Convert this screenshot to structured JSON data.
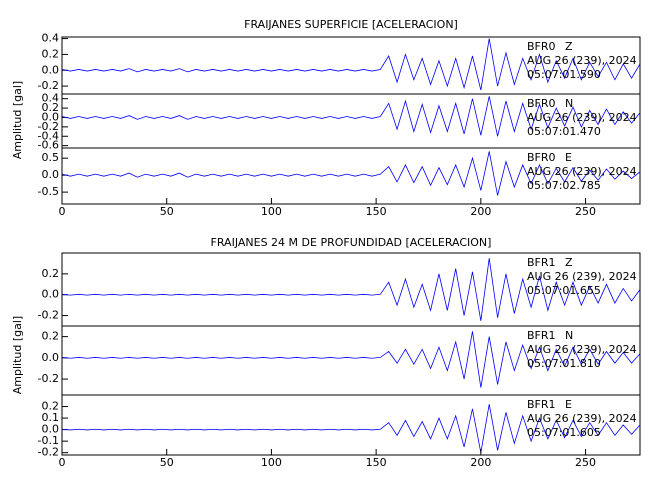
{
  "chart_data": [
    {
      "type": "line",
      "title": "FRAIJANES SUPERFICIE [ACELERACION]",
      "y_label": "Amplitud [gal]",
      "color": "#0000ff",
      "xlim": [
        0,
        276
      ],
      "xticks": [
        0,
        50,
        100,
        150,
        200,
        250
      ],
      "x": [
        0,
        4,
        8,
        12,
        16,
        20,
        24,
        28,
        32,
        36,
        40,
        44,
        48,
        52,
        56,
        60,
        64,
        68,
        72,
        76,
        80,
        84,
        88,
        92,
        96,
        100,
        104,
        108,
        112,
        116,
        120,
        124,
        128,
        132,
        136,
        140,
        144,
        148,
        152,
        156,
        160,
        164,
        168,
        172,
        176,
        180,
        184,
        188,
        192,
        196,
        200,
        204,
        208,
        212,
        216,
        220,
        224,
        228,
        232,
        236,
        240,
        244,
        248,
        252,
        256,
        260,
        264,
        268,
        272,
        276
      ],
      "panels": [
        {
          "station": "BFR0",
          "component": "Z",
          "date": "AUG 26 (239), 2024",
          "time": "05:07:01.590",
          "ylim": [
            -0.3,
            0.42
          ],
          "yticks": [
            0.4,
            0.2,
            {
              "value": 0,
              "label": "0.0"
            },
            -0.2
          ],
          "values": [
            0.01,
            -0.01,
            0.01,
            -0.01,
            0.01,
            -0.01,
            0.01,
            -0.01,
            0.02,
            -0.02,
            0.01,
            -0.01,
            0.01,
            -0.01,
            0.02,
            -0.02,
            0.01,
            -0.01,
            0.01,
            -0.01,
            0.01,
            -0.01,
            0.01,
            -0.01,
            0.01,
            -0.01,
            0.01,
            -0.01,
            0.01,
            -0.01,
            0.01,
            -0.01,
            0.01,
            -0.01,
            0.01,
            -0.01,
            0.01,
            -0.01,
            0.01,
            0.18,
            -0.15,
            0.2,
            -0.12,
            0.15,
            -0.18,
            0.12,
            -0.2,
            0.15,
            -0.22,
            0.18,
            -0.25,
            0.4,
            -0.2,
            0.22,
            -0.18,
            0.15,
            -0.12,
            0.2,
            -0.15,
            0.12,
            -0.1,
            0.15,
            -0.12,
            0.1,
            -0.08,
            0.1,
            -0.12,
            0.08,
            -0.1,
            0.08
          ]
        },
        {
          "station": "BFR0",
          "component": "N",
          "date": "AUG 26 (239), 2024",
          "time": "05:07:01.470",
          "ylim": [
            -0.65,
            0.5
          ],
          "yticks": [
            0.4,
            0.2,
            {
              "value": 0,
              "label": "0.0"
            },
            -0.2,
            -0.4,
            -0.6
          ],
          "values": [
            0.02,
            -0.02,
            0.02,
            -0.02,
            0.02,
            -0.02,
            0.02,
            -0.02,
            0.04,
            -0.04,
            0.02,
            -0.02,
            0.02,
            -0.02,
            0.04,
            -0.04,
            0.02,
            -0.02,
            0.02,
            -0.02,
            0.02,
            -0.02,
            0.02,
            -0.02,
            0.02,
            -0.02,
            0.02,
            -0.02,
            0.02,
            -0.02,
            0.02,
            -0.02,
            0.02,
            -0.02,
            0.02,
            -0.02,
            0.02,
            -0.02,
            0.02,
            0.3,
            -0.25,
            0.35,
            -0.3,
            0.28,
            -0.32,
            0.25,
            -0.3,
            0.3,
            -0.35,
            0.4,
            -0.38,
            0.45,
            -0.4,
            0.35,
            -0.3,
            0.3,
            -0.25,
            0.28,
            -0.22,
            0.2,
            -0.18,
            0.22,
            -0.2,
            0.15,
            -0.15,
            0.18,
            -0.15,
            0.12,
            -0.12,
            0.1
          ]
        },
        {
          "station": "BFR0",
          "component": "E",
          "date": "AUG 26 (239), 2024",
          "time": "05:07:02.785",
          "ylim": [
            -0.85,
            0.8
          ],
          "yticks": [
            0.5,
            {
              "value": 0,
              "label": "0.0"
            },
            -0.5
          ],
          "values": [
            0.03,
            -0.03,
            0.03,
            -0.03,
            0.03,
            -0.03,
            0.03,
            -0.03,
            0.06,
            -0.06,
            0.03,
            -0.03,
            0.03,
            -0.03,
            0.06,
            -0.06,
            0.03,
            -0.03,
            0.03,
            -0.03,
            0.03,
            -0.03,
            0.03,
            -0.03,
            0.03,
            -0.03,
            0.03,
            -0.03,
            0.03,
            -0.03,
            0.03,
            -0.03,
            0.03,
            -0.03,
            0.03,
            -0.03,
            0.03,
            -0.03,
            0.03,
            0.25,
            -0.2,
            0.3,
            -0.22,
            0.25,
            -0.3,
            0.22,
            -0.28,
            0.3,
            -0.35,
            0.5,
            -0.45,
            0.7,
            -0.6,
            0.4,
            -0.35,
            0.3,
            -0.25,
            0.3,
            -0.25,
            0.2,
            -0.2,
            0.22,
            -0.18,
            0.15,
            -0.15,
            0.18,
            -0.12,
            0.12,
            -0.1,
            0.1
          ]
        }
      ]
    },
    {
      "type": "line",
      "title": "FRAIJANES 24 M DE PROFUNDIDAD [ACELERACION]",
      "y_label": "Amplitud [gal]",
      "color": "#0000ff",
      "xlim": [
        0,
        276
      ],
      "xticks": [
        0,
        50,
        100,
        150,
        200,
        250
      ],
      "x": [
        0,
        4,
        8,
        12,
        16,
        20,
        24,
        28,
        32,
        36,
        40,
        44,
        48,
        52,
        56,
        60,
        64,
        68,
        72,
        76,
        80,
        84,
        88,
        92,
        96,
        100,
        104,
        108,
        112,
        116,
        120,
        124,
        128,
        132,
        136,
        140,
        144,
        148,
        152,
        156,
        160,
        164,
        168,
        172,
        176,
        180,
        184,
        188,
        192,
        196,
        200,
        204,
        208,
        212,
        216,
        220,
        224,
        228,
        232,
        236,
        240,
        244,
        248,
        252,
        256,
        260,
        264,
        268,
        272,
        276
      ],
      "panels": [
        {
          "station": "BFR1",
          "component": "Z",
          "date": "AUG 26 (239), 2024",
          "time": "05:07:01.655",
          "ylim": [
            -0.3,
            0.4
          ],
          "yticks": [
            0.2,
            {
              "value": 0,
              "label": "0.0"
            },
            -0.2
          ],
          "values": [
            0.004,
            -0.004,
            0.004,
            -0.004,
            0.004,
            -0.004,
            0.004,
            -0.004,
            0.004,
            -0.004,
            0.004,
            -0.004,
            0.004,
            -0.004,
            0.004,
            -0.004,
            0.004,
            -0.004,
            0.004,
            -0.004,
            0.004,
            -0.004,
            0.004,
            -0.004,
            0.004,
            -0.004,
            0.004,
            -0.004,
            0.004,
            -0.004,
            0.004,
            -0.004,
            0.004,
            -0.004,
            0.004,
            -0.004,
            0.004,
            -0.004,
            0.004,
            0.12,
            -0.1,
            0.15,
            -0.12,
            0.1,
            -0.15,
            0.2,
            -0.15,
            0.25,
            -0.2,
            0.22,
            -0.25,
            0.35,
            -0.22,
            0.2,
            -0.18,
            0.15,
            -0.12,
            0.18,
            -0.15,
            0.12,
            -0.1,
            0.12,
            -0.1,
            0.08,
            -0.08,
            0.1,
            -0.08,
            0.06,
            -0.06,
            0.05
          ]
        },
        {
          "station": "BFR1",
          "component": "N",
          "date": "AUG 26 (239), 2024",
          "time": "05:07:01.810",
          "ylim": [
            -0.35,
            0.3
          ],
          "yticks": [
            0.2,
            {
              "value": 0,
              "label": "0.0"
            },
            -0.2
          ],
          "values": [
            0.004,
            -0.004,
            0.004,
            -0.004,
            0.004,
            -0.004,
            0.004,
            -0.004,
            0.004,
            -0.004,
            0.004,
            -0.004,
            0.004,
            -0.004,
            0.004,
            -0.004,
            0.004,
            -0.004,
            0.004,
            -0.004,
            0.004,
            -0.004,
            0.004,
            -0.004,
            0.004,
            -0.004,
            0.004,
            -0.004,
            0.004,
            -0.004,
            0.004,
            -0.004,
            0.004,
            -0.004,
            0.004,
            -0.004,
            0.004,
            -0.004,
            0.004,
            0.06,
            -0.05,
            0.08,
            -0.06,
            0.08,
            -0.1,
            0.1,
            -0.12,
            0.15,
            -0.2,
            0.25,
            -0.28,
            0.2,
            -0.25,
            0.15,
            -0.12,
            0.12,
            -0.1,
            0.1,
            -0.12,
            0.08,
            -0.08,
            0.1,
            -0.06,
            0.08,
            -0.06,
            0.06,
            -0.05,
            0.05,
            -0.05,
            0.04
          ]
        },
        {
          "station": "BFR1",
          "component": "E",
          "date": "AUG 26 (239), 2024",
          "time": "05:07:01.605",
          "ylim": [
            -0.22,
            0.3
          ],
          "yticks": [
            0.2,
            0.1,
            {
              "value": 0,
              "label": "0.0"
            },
            -0.1,
            -0.2
          ],
          "values": [
            0.003,
            -0.003,
            0.003,
            -0.003,
            0.003,
            -0.003,
            0.003,
            -0.003,
            0.003,
            -0.003,
            0.003,
            -0.003,
            0.003,
            -0.003,
            0.003,
            -0.003,
            0.003,
            -0.003,
            0.003,
            -0.003,
            0.003,
            -0.003,
            0.003,
            -0.003,
            0.003,
            -0.003,
            0.003,
            -0.003,
            0.003,
            -0.003,
            0.003,
            -0.003,
            0.003,
            -0.003,
            0.003,
            -0.003,
            0.003,
            -0.003,
            0.003,
            0.06,
            -0.05,
            0.08,
            -0.06,
            0.07,
            -0.08,
            0.1,
            -0.08,
            0.12,
            -0.15,
            0.18,
            -0.2,
            0.22,
            -0.18,
            0.15,
            -0.12,
            0.12,
            -0.1,
            0.1,
            -0.08,
            0.08,
            -0.07,
            0.08,
            -0.06,
            0.06,
            -0.05,
            0.06,
            -0.05,
            0.04,
            -0.04,
            0.04
          ]
        }
      ]
    }
  ]
}
